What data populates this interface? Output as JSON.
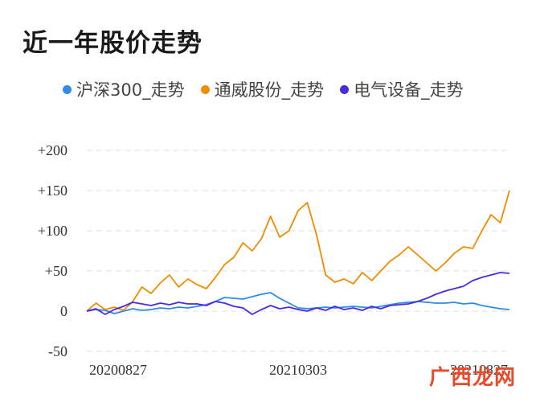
{
  "page_title": "近一年股价走势",
  "watermark": "广西龙网",
  "chart_data": {
    "type": "line",
    "title": "近一年股价走势",
    "xlabel": "",
    "ylabel": "",
    "ylim": [
      -50,
      200
    ],
    "yticks": [
      -50,
      0,
      50,
      100,
      150,
      200
    ],
    "ytick_labels": [
      "-50",
      "0",
      "+50",
      "+100",
      "+150",
      "+200"
    ],
    "xtick_labels": [
      "20200827",
      "20210303",
      "20210827"
    ],
    "grid": true,
    "legend_position": "top",
    "series": [
      {
        "name": "沪深300_走势",
        "color": "#2e8ce6",
        "values": [
          0,
          2,
          1,
          -3,
          0,
          3,
          1,
          2,
          4,
          3,
          5,
          4,
          6,
          8,
          12,
          17,
          16,
          15,
          18,
          21,
          23,
          16,
          10,
          4,
          3,
          4,
          5,
          4,
          5,
          6,
          5,
          4,
          6,
          8,
          10,
          11,
          12,
          11,
          10,
          10,
          11,
          9,
          10,
          7,
          5,
          3,
          2
        ]
      },
      {
        "name": "通威股份_走势",
        "color": "#f08c00",
        "values": [
          0,
          10,
          2,
          5,
          1,
          12,
          30,
          22,
          35,
          45,
          30,
          40,
          33,
          28,
          42,
          58,
          67,
          85,
          75,
          90,
          118,
          92,
          100,
          125,
          135,
          95,
          45,
          36,
          40,
          34,
          48,
          38,
          50,
          62,
          70,
          80,
          70,
          60,
          50,
          60,
          72,
          80,
          78,
          100,
          120,
          110,
          150
        ]
      },
      {
        "name": "电气设备_走势",
        "color": "#4b2ae0",
        "values": [
          0,
          3,
          -4,
          2,
          6,
          11,
          9,
          7,
          10,
          8,
          11,
          9,
          9,
          7,
          12,
          10,
          6,
          4,
          -4,
          2,
          7,
          3,
          5,
          2,
          0,
          4,
          1,
          6,
          2,
          4,
          1,
          6,
          3,
          7,
          8,
          9,
          12,
          16,
          21,
          25,
          28,
          31,
          38,
          42,
          45,
          48,
          47
        ]
      }
    ]
  }
}
